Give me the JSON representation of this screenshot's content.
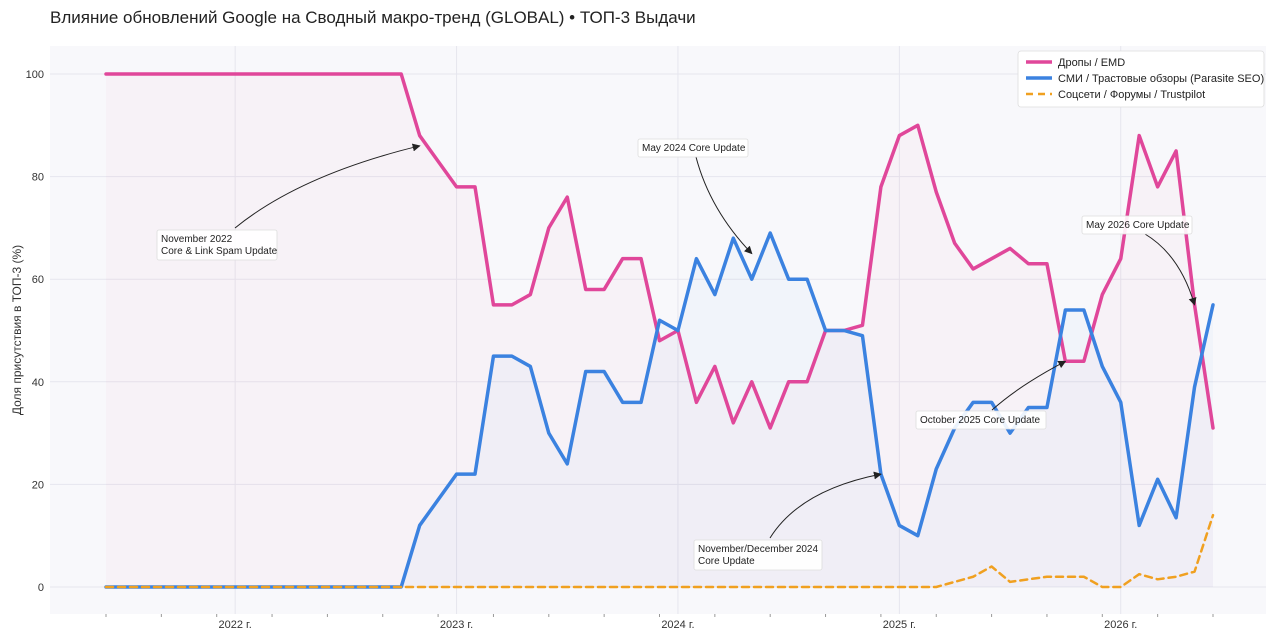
{
  "title": "Влияние обновлений Google на Сводный макро-тренд (GLOBAL) • ТОП-3 Выдачи",
  "chart_data": {
    "type": "line",
    "title": "Влияние обновлений Google на Сводный макро-тренд (GLOBAL) • ТОП-3 Выдачи",
    "xlabel": "",
    "ylabel": "Доля присутствия в ТОП-3 (%)",
    "ylim": [
      0,
      100
    ],
    "y_ticks": [
      0,
      20,
      40,
      60,
      80,
      100
    ],
    "x_ticks": [
      "2022 г.",
      "2023 г.",
      "2024 г.",
      "2025 г.",
      "2026 г."
    ],
    "x_tick_dates": [
      "2022-01",
      "2023-01",
      "2024-01",
      "2025-01",
      "2026-01"
    ],
    "x_range": [
      "2021-06",
      "2026-06"
    ],
    "grid": true,
    "legend_position": "top-right",
    "x": [
      "2021-06",
      "2021-07",
      "2021-08",
      "2021-09",
      "2021-10",
      "2021-11",
      "2021-12",
      "2022-01",
      "2022-02",
      "2022-03",
      "2022-04",
      "2022-05",
      "2022-06",
      "2022-07",
      "2022-08",
      "2022-09",
      "2022-10",
      "2022-11",
      "2022-12",
      "2023-01",
      "2023-02",
      "2023-03",
      "2023-04",
      "2023-05",
      "2023-06",
      "2023-07",
      "2023-08",
      "2023-09",
      "2023-10",
      "2023-11",
      "2023-12",
      "2024-01",
      "2024-02",
      "2024-03",
      "2024-04",
      "2024-05",
      "2024-06",
      "2024-07",
      "2024-08",
      "2024-09",
      "2024-10",
      "2024-11",
      "2024-12",
      "2025-01",
      "2025-02",
      "2025-03",
      "2025-04",
      "2025-05",
      "2025-06",
      "2025-07",
      "2025-08",
      "2025-09",
      "2025-10",
      "2025-11",
      "2025-12",
      "2026-01",
      "2026-02",
      "2026-03",
      "2026-04",
      "2026-05",
      "2026-06"
    ],
    "series": [
      {
        "name": "Дропы / EMD",
        "color": "#e0479a",
        "dash": false,
        "values": [
          100,
          100,
          100,
          100,
          100,
          100,
          100,
          100,
          100,
          100,
          100,
          100,
          100,
          100,
          100,
          100,
          100,
          88,
          83,
          78,
          78,
          55,
          55,
          57,
          70,
          76,
          58,
          58,
          64,
          64,
          48,
          50,
          36,
          43,
          32,
          40,
          31,
          40,
          40,
          50,
          50,
          51,
          78,
          88,
          90,
          77,
          67,
          62,
          64,
          66,
          63,
          63,
          44,
          44,
          57,
          64,
          88,
          78,
          85,
          55,
          31
        ]
      },
      {
        "name": "СМИ / Трастовые обзоры (Parasite SEO)",
        "color": "#3b82e0",
        "dash": false,
        "values": [
          0,
          0,
          0,
          0,
          0,
          0,
          0,
          0,
          0,
          0,
          0,
          0,
          0,
          0,
          0,
          0,
          0,
          12,
          17,
          22,
          22,
          45,
          45,
          43,
          30,
          24,
          42,
          42,
          36,
          36,
          52,
          50,
          64,
          57,
          68,
          60,
          69,
          60,
          60,
          50,
          50,
          49,
          22,
          12,
          10,
          23,
          31,
          36,
          36,
          30,
          35,
          35,
          54,
          54,
          43,
          36,
          12,
          21,
          13.5,
          39,
          55
        ]
      },
      {
        "name": "Соцсети / Форумы / Trustpilot",
        "color": "#f0a020",
        "dash": true,
        "values": [
          0,
          0,
          0,
          0,
          0,
          0,
          0,
          0,
          0,
          0,
          0,
          0,
          0,
          0,
          0,
          0,
          0,
          0,
          0,
          0,
          0,
          0,
          0,
          0,
          0,
          0,
          0,
          0,
          0,
          0,
          0,
          0,
          0,
          0,
          0,
          0,
          0,
          0,
          0,
          0,
          0,
          0,
          0,
          0,
          0,
          0,
          1,
          2,
          4,
          1,
          1.5,
          2,
          2,
          2,
          0,
          0,
          2.5,
          1.5,
          2,
          3,
          14
        ]
      }
    ],
    "annotations": [
      {
        "text": [
          "November 2022",
          "Core & Link Spam Update"
        ],
        "target_x": "2022-11",
        "target_y": 86
      },
      {
        "text": [
          "May 2024 Core Update"
        ],
        "target_x": "2024-05",
        "target_y": 65
      },
      {
        "text": [
          "November/December 2024",
          "Core Update"
        ],
        "target_x": "2024-12",
        "target_y": 22
      },
      {
        "text": [
          "October 2025 Core Update"
        ],
        "target_x": "2025-10",
        "target_y": 44
      },
      {
        "text": [
          "May 2026 Core Update"
        ],
        "target_x": "2026-05",
        "target_y": 55
      }
    ]
  }
}
